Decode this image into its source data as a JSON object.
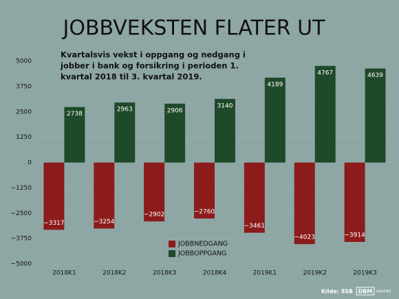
{
  "chart_data": {
    "type": "bar",
    "title": "JOBBVEKSTEN FLATER UT",
    "subtitle": [
      "Kvartalsvis vekst i oppgang og nedgang i",
      "jobber i bank og forsikring i perioden 1.",
      "kvartal 2018 til 3. kvartal 2019."
    ],
    "categories": [
      "2018K1",
      "2018K2",
      "2018K3",
      "2018K4",
      "2019K1",
      "2019K2",
      "2019K3"
    ],
    "series": [
      {
        "name": "JOBBNEDGANG",
        "color": "#8c1c1c",
        "values": [
          -3317,
          -3254,
          -2902,
          -2760,
          -3461,
          -4023,
          -3914
        ],
        "value_labels": [
          "−3317",
          "−3254",
          "−2902",
          "−2760",
          "−3461",
          "−4023",
          "−3914"
        ]
      },
      {
        "name": "JOBBOPPGANG",
        "color": "#1f4a2a",
        "values": [
          2738,
          2963,
          2906,
          3140,
          4189,
          4767,
          4639
        ]
      }
    ],
    "ylim": [
      -5000,
      5000
    ],
    "yticks": [
      {
        "value": -5000,
        "label": "−5000"
      },
      {
        "value": -3750,
        "label": "−3750"
      },
      {
        "value": -2500,
        "label": "−2500"
      },
      {
        "value": -1250,
        "label": "−1250"
      },
      0,
      1250,
      2500,
      3750,
      5000
    ],
    "grid": true,
    "source": "Kilde: SSB",
    "logo": [
      "DBM",
      "GRAFIKK"
    ]
  }
}
